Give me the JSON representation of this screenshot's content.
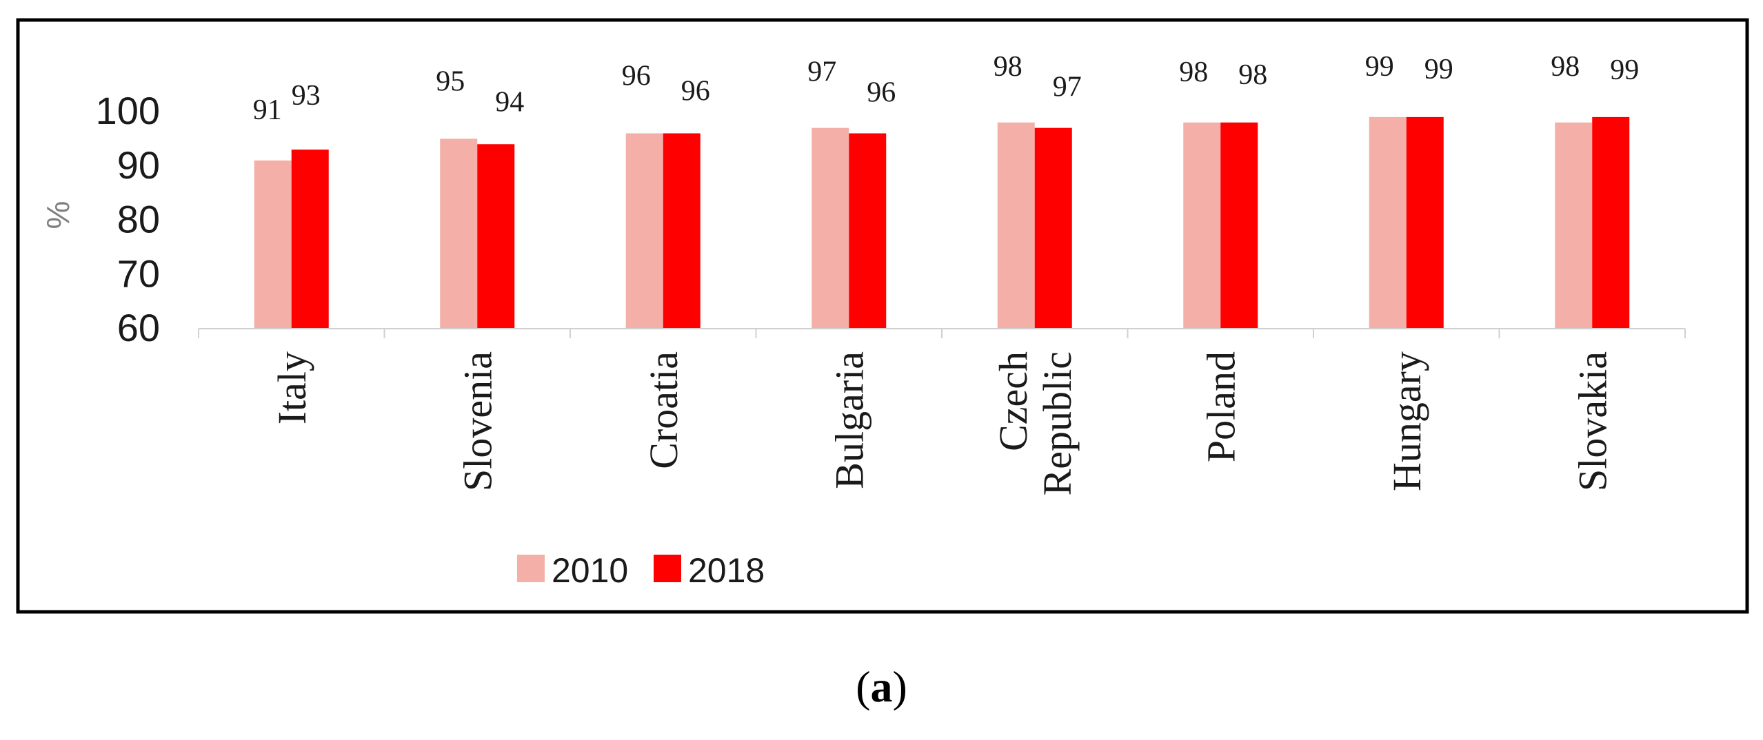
{
  "chart_data": {
    "type": "bar",
    "categories": [
      "Italy",
      "Slovenia",
      "Croatia",
      "Bulgaria",
      "Czech Republic",
      "Poland",
      "Hungary",
      "Slovakia"
    ],
    "category_lines": [
      [
        "Italy"
      ],
      [
        "Slovenia"
      ],
      [
        "Croatia"
      ],
      [
        "Bulgaria"
      ],
      [
        "Czech",
        "Republic"
      ],
      [
        "Poland"
      ],
      [
        "Hungary"
      ],
      [
        "Slovakia"
      ]
    ],
    "series": [
      {
        "name": "2010",
        "values": [
          91,
          95,
          96,
          97,
          98,
          98,
          99,
          98
        ],
        "labels": [
          "91",
          "95",
          "96",
          "97",
          "98",
          "98",
          "99",
          "98"
        ]
      },
      {
        "name": "2018",
        "values": [
          93,
          94,
          96,
          96,
          97,
          98,
          99,
          99
        ],
        "labels": [
          "93",
          "94",
          "96",
          "96",
          "97",
          "98",
          "99",
          "99"
        ]
      }
    ],
    "ylabel": "%",
    "ylim": [
      60,
      100
    ],
    "yticks": [
      "60",
      "70",
      "80",
      "90",
      "100"
    ],
    "legend_position": "bottom-center",
    "grid": false
  },
  "colors": {
    "series_2010": "#f4b0a8",
    "series_2018": "#ff0000",
    "axis": "#d0d0d0",
    "frame": "#000000"
  },
  "caption": {
    "open": "(",
    "letter": "a",
    "close": ")"
  }
}
